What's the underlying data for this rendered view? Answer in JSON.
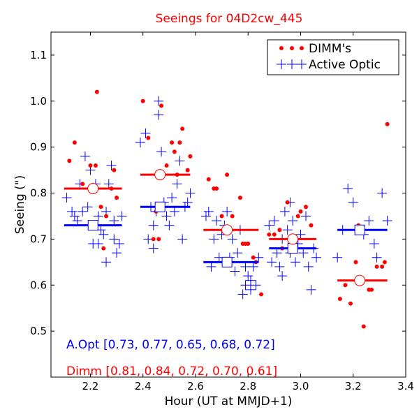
{
  "chart_data": {
    "type": "scatter",
    "title": "Seeings for 04D2cw_445",
    "xlabel": "Hour (UT at MMJD+1)",
    "ylabel": "Seeing (\")",
    "xlim": [
      2.05,
      3.4
    ],
    "ylim": [
      0.4,
      1.15
    ],
    "xticks": [
      "2.2",
      "2.4",
      "2.6",
      "2.8",
      "3.0",
      "3.2",
      "3.4"
    ],
    "yticks": [
      "0.5",
      "0.6",
      "0.7",
      "0.8",
      "0.9",
      "1.0",
      "1.1"
    ],
    "grid": false,
    "legend": {
      "placement": "top-right",
      "entries": [
        {
          "label": "DIMM's",
          "marker": "dot",
          "color": "#ff0000"
        },
        {
          "label": "Active Optic",
          "marker": "plus",
          "color": "#0000ff"
        }
      ]
    },
    "annotations": [
      {
        "text": "A.Opt [0.73, 0.77, 0.65, 0.68, 0.72]",
        "color": "#0000ff"
      },
      {
        "text": "Dimm [0.81, 0.84, 0.72, 0.70, 0.61]",
        "color": "#ff0000"
      }
    ],
    "colors": {
      "dimm": "#ff0000",
      "active_optic": "#0000ff",
      "title": "#ff0000"
    },
    "series": [
      {
        "name": "DIMM's",
        "marker": "dot",
        "points": [
          [
            2.12,
            0.87
          ],
          [
            2.14,
            0.91
          ],
          [
            2.17,
            0.82
          ],
          [
            2.2,
            0.86
          ],
          [
            2.22,
            0.86
          ],
          [
            2.225,
            1.02
          ],
          [
            2.24,
            0.77
          ],
          [
            2.26,
            0.75
          ],
          [
            2.28,
            0.81
          ],
          [
            2.29,
            0.85
          ],
          [
            2.3,
            0.79
          ],
          [
            2.25,
            0.68
          ],
          [
            2.4,
            1.0
          ],
          [
            2.42,
            0.92
          ],
          [
            2.44,
            0.7
          ],
          [
            2.45,
            0.76
          ],
          [
            2.46,
            0.7
          ],
          [
            2.47,
            0.99
          ],
          [
            2.49,
            0.86
          ],
          [
            2.51,
            0.91
          ],
          [
            2.52,
            0.89
          ],
          [
            2.53,
            0.84
          ],
          [
            2.54,
            0.91
          ],
          [
            2.55,
            0.94
          ],
          [
            2.57,
            0.85
          ],
          [
            2.58,
            0.88
          ],
          [
            2.65,
            0.83
          ],
          [
            2.67,
            0.81
          ],
          [
            2.68,
            0.81
          ],
          [
            2.7,
            0.75
          ],
          [
            2.71,
            0.72
          ],
          [
            2.72,
            0.84
          ],
          [
            2.74,
            0.75
          ],
          [
            2.77,
            0.79
          ],
          [
            2.78,
            0.69
          ],
          [
            2.79,
            0.69
          ],
          [
            2.8,
            0.69
          ],
          [
            2.82,
            0.66
          ],
          [
            2.83,
            0.65
          ],
          [
            2.85,
            0.58
          ],
          [
            2.88,
            0.71
          ],
          [
            2.9,
            0.71
          ],
          [
            2.92,
            0.72
          ],
          [
            2.93,
            0.68
          ],
          [
            2.95,
            0.78
          ],
          [
            2.97,
            0.7
          ],
          [
            2.99,
            0.75
          ],
          [
            3.0,
            0.76
          ],
          [
            3.02,
            0.77
          ],
          [
            3.04,
            0.73
          ],
          [
            3.15,
            0.57
          ],
          [
            3.17,
            0.6
          ],
          [
            3.19,
            0.56
          ],
          [
            3.21,
            0.65
          ],
          [
            3.22,
            0.73
          ],
          [
            3.24,
            0.51
          ],
          [
            3.26,
            0.59
          ],
          [
            3.27,
            0.59
          ],
          [
            3.29,
            0.64
          ],
          [
            3.31,
            0.64
          ],
          [
            3.33,
            0.95
          ],
          [
            3.32,
            0.65
          ]
        ]
      },
      {
        "name": "Active Optic",
        "marker": "plus",
        "points": [
          [
            2.11,
            0.79
          ],
          [
            2.13,
            0.76
          ],
          [
            2.14,
            0.75
          ],
          [
            2.15,
            0.74
          ],
          [
            2.16,
            0.82
          ],
          [
            2.17,
            0.76
          ],
          [
            2.18,
            0.88
          ],
          [
            2.19,
            0.77
          ],
          [
            2.2,
            0.85
          ],
          [
            2.21,
            0.69
          ],
          [
            2.22,
            0.82
          ],
          [
            2.23,
            0.75
          ],
          [
            2.24,
            0.72
          ],
          [
            2.25,
            0.71
          ],
          [
            2.26,
            0.65
          ],
          [
            2.27,
            0.82
          ],
          [
            2.28,
            0.86
          ],
          [
            2.29,
            0.7
          ],
          [
            2.3,
            0.67
          ],
          [
            2.31,
            0.69
          ],
          [
            2.32,
            0.75
          ],
          [
            2.23,
            0.69
          ],
          [
            2.26,
            0.76
          ],
          [
            2.29,
            0.74
          ],
          [
            2.39,
            0.91
          ],
          [
            2.41,
            0.93
          ],
          [
            2.42,
            0.7
          ],
          [
            2.43,
            0.77
          ],
          [
            2.44,
            0.73
          ],
          [
            2.45,
            0.76
          ],
          [
            2.46,
            1.0
          ],
          [
            2.47,
            0.89
          ],
          [
            2.48,
            0.78
          ],
          [
            2.49,
            0.75
          ],
          [
            2.5,
            0.73
          ],
          [
            2.51,
            0.79
          ],
          [
            2.52,
            0.76
          ],
          [
            2.53,
            0.82
          ],
          [
            2.54,
            0.87
          ],
          [
            2.55,
            0.7
          ],
          [
            2.56,
            0.77
          ],
          [
            2.57,
            0.78
          ],
          [
            2.58,
            0.8
          ],
          [
            2.46,
            0.97
          ],
          [
            2.44,
            0.68
          ],
          [
            2.64,
            0.75
          ],
          [
            2.65,
            0.76
          ],
          [
            2.66,
            0.64
          ],
          [
            2.67,
            0.7
          ],
          [
            2.68,
            0.74
          ],
          [
            2.69,
            0.66
          ],
          [
            2.7,
            0.71
          ],
          [
            2.71,
            0.73
          ],
          [
            2.72,
            0.76
          ],
          [
            2.73,
            0.66
          ],
          [
            2.74,
            0.7
          ],
          [
            2.75,
            0.63
          ],
          [
            2.76,
            0.67
          ],
          [
            2.77,
            0.72
          ],
          [
            2.78,
            0.58
          ],
          [
            2.79,
            0.6
          ],
          [
            2.8,
            0.62
          ],
          [
            2.81,
            0.59
          ],
          [
            2.82,
            0.64
          ],
          [
            2.83,
            0.6
          ],
          [
            2.84,
            0.66
          ],
          [
            2.79,
            0.64
          ],
          [
            2.81,
            0.61
          ],
          [
            2.88,
            0.73
          ],
          [
            2.89,
            0.65
          ],
          [
            2.9,
            0.74
          ],
          [
            2.91,
            0.67
          ],
          [
            2.92,
            0.64
          ],
          [
            2.93,
            0.7
          ],
          [
            2.94,
            0.76
          ],
          [
            2.95,
            0.72
          ],
          [
            2.96,
            0.67
          ],
          [
            2.97,
            0.74
          ],
          [
            2.98,
            0.65
          ],
          [
            2.99,
            0.69
          ],
          [
            3.0,
            0.71
          ],
          [
            3.01,
            0.67
          ],
          [
            3.02,
            0.75
          ],
          [
            3.03,
            0.64
          ],
          [
            3.04,
            0.59
          ],
          [
            3.05,
            0.68
          ],
          [
            3.06,
            0.66
          ],
          [
            2.96,
            0.78
          ],
          [
            2.93,
            0.62
          ],
          [
            3.14,
            0.66
          ],
          [
            3.16,
            0.72
          ],
          [
            3.18,
            0.81
          ],
          [
            3.2,
            0.78
          ],
          [
            3.22,
            0.72
          ],
          [
            3.24,
            0.71
          ],
          [
            3.26,
            0.74
          ],
          [
            3.28,
            0.69
          ],
          [
            3.29,
            0.66
          ],
          [
            3.31,
            0.8
          ],
          [
            3.33,
            0.74
          ]
        ]
      }
    ],
    "bins": [
      {
        "x_range": [
          2.1,
          2.32
        ],
        "x_center": 2.21,
        "dimm_median": 0.81,
        "ao_median": 0.73
      },
      {
        "x_range": [
          2.39,
          2.58
        ],
        "x_center": 2.465,
        "dimm_median": 0.84,
        "ao_median": 0.77
      },
      {
        "x_range": [
          2.63,
          2.84
        ],
        "x_center": 2.72,
        "dimm_median": 0.72,
        "ao_median": 0.65
      },
      {
        "x_range": [
          2.88,
          3.06
        ],
        "x_center": 2.97,
        "dimm_median": 0.7,
        "ao_median": 0.68
      },
      {
        "x_range": [
          3.14,
          3.33
        ],
        "x_center": 3.225,
        "dimm_median": 0.61,
        "ao_median": 0.72
      }
    ]
  }
}
